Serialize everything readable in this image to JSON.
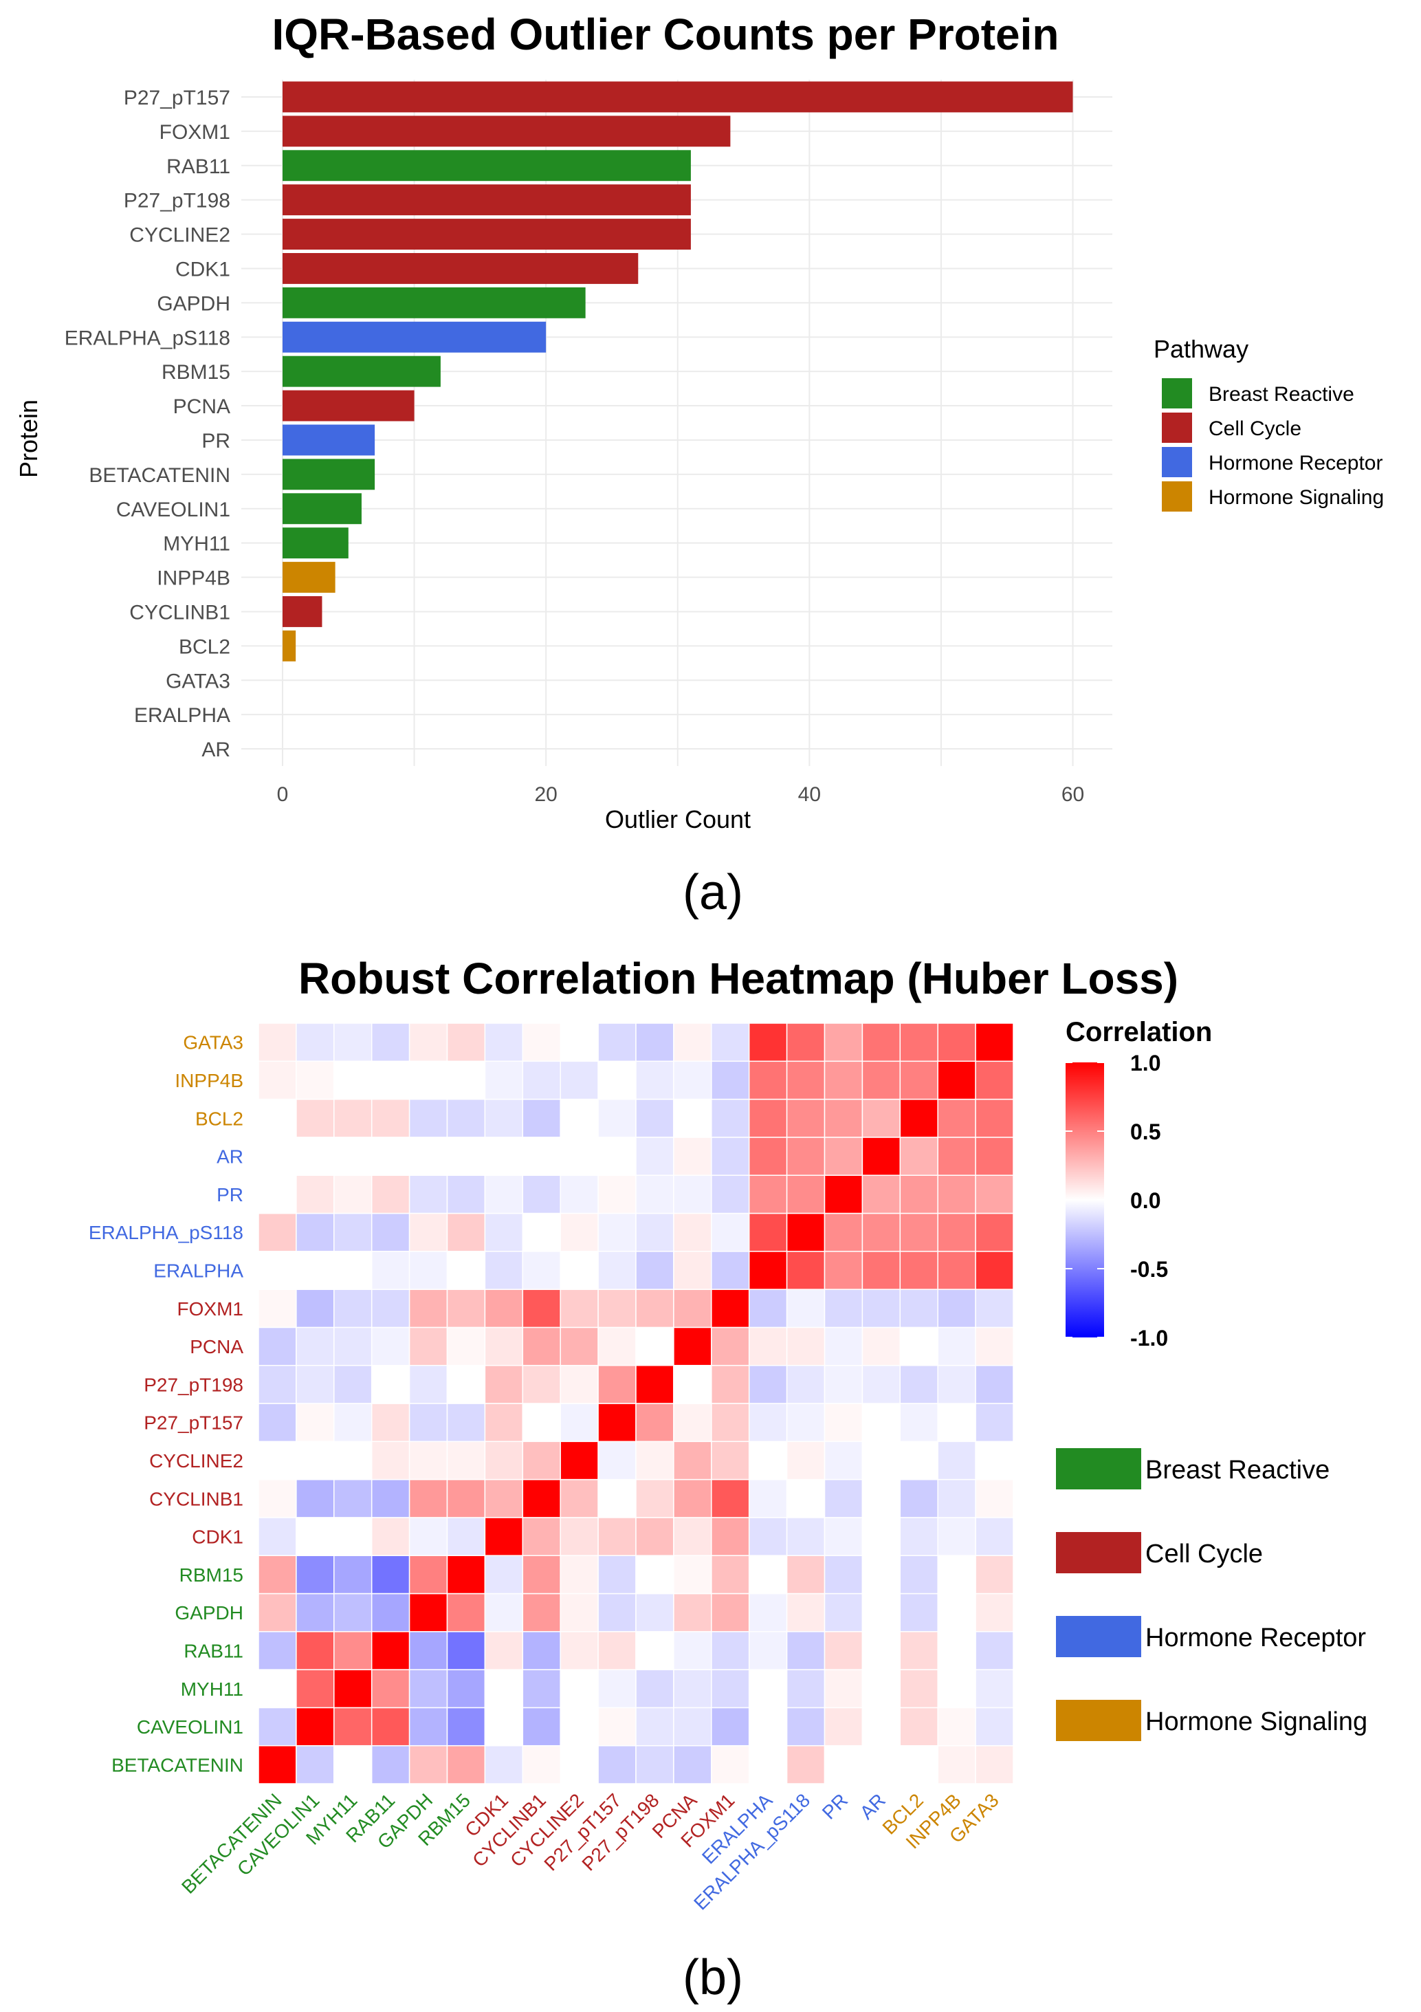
{
  "pathway_colors": {
    "Breast Reactive": "#228B22",
    "Cell Cycle": "#B22222",
    "Hormone Receptor": "#4169E1",
    "Hormone Signaling": "#CC8500"
  },
  "chart_data": [
    {
      "type": "bar",
      "orientation": "horizontal",
      "title": "IQR-Based Outlier Counts per Protein",
      "xlabel": "Outlier Count",
      "ylabel": "Protein",
      "xlim": [
        0,
        63
      ],
      "xticks": [
        0,
        20,
        40,
        60
      ],
      "grid": true,
      "legend": {
        "title": "Pathway",
        "position": "right",
        "entries": [
          "Breast Reactive",
          "Cell Cycle",
          "Hormone Receptor",
          "Hormone Signaling"
        ]
      },
      "categories": [
        "P27_pT157",
        "FOXM1",
        "RAB11",
        "P27_pT198",
        "CYCLINE2",
        "CDK1",
        "GAPDH",
        "ERALPHA_pS118",
        "RBM15",
        "PCNA",
        "PR",
        "BETACATENIN",
        "CAVEOLIN1",
        "MYH11",
        "INPP4B",
        "CYCLINB1",
        "BCL2",
        "GATA3",
        "ERALPHA",
        "AR"
      ],
      "values": [
        60,
        34,
        31,
        31,
        31,
        27,
        23,
        20,
        12,
        10,
        7,
        7,
        6,
        5,
        4,
        3,
        1,
        0,
        0,
        0
      ],
      "pathways": [
        "Cell Cycle",
        "Cell Cycle",
        "Breast Reactive",
        "Cell Cycle",
        "Cell Cycle",
        "Cell Cycle",
        "Breast Reactive",
        "Hormone Receptor",
        "Breast Reactive",
        "Cell Cycle",
        "Hormone Receptor",
        "Breast Reactive",
        "Breast Reactive",
        "Breast Reactive",
        "Hormone Signaling",
        "Cell Cycle",
        "Hormone Signaling",
        "Hormone Signaling",
        "Hormone Receptor",
        "Hormone Receptor"
      ],
      "caption": "(a)"
    },
    {
      "type": "heatmap",
      "title": "Robust Correlation Heatmap (Huber Loss)",
      "colorbar": {
        "title": "Correlation",
        "ticks": [
          "1.0",
          "0.5",
          "0.0",
          "-0.5",
          "-1.0"
        ],
        "range": [
          -1,
          1
        ],
        "low": "#0000FF",
        "mid": "#FFFFFF",
        "high": "#FF0000"
      },
      "legend": {
        "position": "right",
        "entries": [
          "Breast Reactive",
          "Cell Cycle",
          "Hormone Receptor",
          "Hormone Signaling"
        ]
      },
      "labels": [
        "BETACATENIN",
        "CAVEOLIN1",
        "MYH11",
        "RAB11",
        "GAPDH",
        "RBM15",
        "CDK1",
        "CYCLINB1",
        "CYCLINE2",
        "P27_pT157",
        "P27_pT198",
        "PCNA",
        "FOXM1",
        "ERALPHA",
        "ERALPHA_pS118",
        "PR",
        "AR",
        "BCL2",
        "INPP4B",
        "GATA3"
      ],
      "label_pathways": [
        "Breast Reactive",
        "Breast Reactive",
        "Breast Reactive",
        "Breast Reactive",
        "Breast Reactive",
        "Breast Reactive",
        "Cell Cycle",
        "Cell Cycle",
        "Cell Cycle",
        "Cell Cycle",
        "Cell Cycle",
        "Cell Cycle",
        "Cell Cycle",
        "Hormone Receptor",
        "Hormone Receptor",
        "Hormone Receptor",
        "Hormone Receptor",
        "Hormone Signaling",
        "Hormone Signaling",
        "Hormone Signaling"
      ],
      "matrix": [
        [
          1.0,
          -0.2,
          0.0,
          -0.25,
          0.25,
          0.35,
          -0.1,
          0.03,
          0.0,
          -0.2,
          -0.15,
          -0.2,
          0.03,
          0.0,
          0.2,
          0.0,
          0.0,
          0.0,
          0.05,
          0.08
        ],
        [
          -0.2,
          1.0,
          0.6,
          0.65,
          -0.3,
          -0.45,
          0.0,
          -0.3,
          0.0,
          0.03,
          -0.1,
          -0.1,
          -0.25,
          0.0,
          -0.2,
          0.1,
          0.0,
          0.15,
          0.03,
          -0.1
        ],
        [
          0.0,
          0.6,
          1.0,
          0.45,
          -0.25,
          -0.35,
          0.0,
          -0.25,
          0.0,
          -0.05,
          -0.15,
          -0.1,
          -0.15,
          0.0,
          -0.15,
          0.05,
          0.0,
          0.15,
          0.0,
          -0.08
        ],
        [
          -0.25,
          0.65,
          0.45,
          1.0,
          -0.35,
          -0.55,
          0.1,
          -0.3,
          0.08,
          0.12,
          0.0,
          -0.05,
          -0.15,
          -0.05,
          -0.2,
          0.15,
          0.0,
          0.15,
          0.0,
          -0.15
        ],
        [
          0.25,
          -0.3,
          -0.25,
          -0.35,
          1.0,
          0.5,
          -0.05,
          0.4,
          0.05,
          -0.15,
          -0.1,
          0.2,
          0.3,
          -0.05,
          0.08,
          -0.12,
          0.0,
          -0.15,
          0.0,
          0.08
        ],
        [
          0.35,
          -0.45,
          -0.35,
          -0.55,
          0.5,
          1.0,
          -0.1,
          0.4,
          0.05,
          -0.15,
          0.0,
          0.03,
          0.25,
          0.0,
          0.2,
          -0.15,
          0.0,
          -0.15,
          0.0,
          0.15
        ],
        [
          -0.1,
          0.0,
          0.0,
          0.1,
          -0.05,
          -0.1,
          1.0,
          0.3,
          0.12,
          0.2,
          0.25,
          0.1,
          0.35,
          -0.12,
          -0.1,
          -0.05,
          0.0,
          -0.1,
          -0.05,
          -0.1
        ],
        [
          0.03,
          -0.3,
          -0.25,
          -0.3,
          0.4,
          0.4,
          0.3,
          1.0,
          0.25,
          0.0,
          0.15,
          0.35,
          0.65,
          -0.05,
          0.0,
          -0.15,
          0.0,
          -0.2,
          -0.1,
          0.03
        ],
        [
          0.0,
          0.0,
          0.0,
          0.08,
          0.05,
          0.05,
          0.12,
          0.25,
          1.0,
          -0.05,
          0.05,
          0.3,
          0.2,
          0.0,
          0.05,
          -0.05,
          0.0,
          0.0,
          -0.1,
          0.0
        ],
        [
          -0.2,
          0.03,
          -0.05,
          0.12,
          -0.15,
          -0.15,
          0.2,
          0.0,
          -0.05,
          1.0,
          0.4,
          0.05,
          0.2,
          -0.08,
          -0.05,
          0.03,
          0.0,
          -0.05,
          0.0,
          -0.15
        ],
        [
          -0.15,
          -0.1,
          -0.15,
          0.0,
          -0.1,
          0.0,
          0.25,
          0.15,
          0.05,
          0.4,
          1.0,
          0.0,
          0.25,
          -0.2,
          -0.1,
          -0.05,
          -0.08,
          -0.15,
          -0.08,
          -0.2
        ],
        [
          -0.2,
          -0.1,
          -0.1,
          -0.05,
          0.2,
          0.03,
          0.1,
          0.35,
          0.3,
          0.05,
          0.0,
          1.0,
          0.3,
          0.08,
          0.08,
          -0.05,
          0.05,
          0.0,
          -0.05,
          0.05
        ],
        [
          0.03,
          -0.25,
          -0.15,
          -0.15,
          0.3,
          0.25,
          0.35,
          0.65,
          0.2,
          0.2,
          0.25,
          0.3,
          1.0,
          -0.2,
          -0.05,
          -0.15,
          -0.15,
          -0.15,
          -0.2,
          -0.12
        ],
        [
          0.0,
          0.0,
          0.0,
          -0.05,
          -0.05,
          0.0,
          -0.12,
          -0.05,
          0.0,
          -0.08,
          -0.2,
          0.08,
          -0.2,
          1.0,
          0.7,
          0.45,
          0.55,
          0.55,
          0.55,
          0.8
        ],
        [
          0.2,
          -0.2,
          -0.15,
          -0.2,
          0.08,
          0.2,
          -0.1,
          0.0,
          0.05,
          -0.05,
          -0.1,
          0.08,
          -0.05,
          0.7,
          1.0,
          0.45,
          0.45,
          0.45,
          0.5,
          0.6
        ],
        [
          0.0,
          0.1,
          0.05,
          0.15,
          -0.12,
          -0.15,
          -0.05,
          -0.15,
          -0.05,
          0.03,
          -0.05,
          -0.05,
          -0.15,
          0.45,
          0.45,
          1.0,
          0.35,
          0.4,
          0.4,
          0.35
        ],
        [
          0.0,
          0.0,
          0.0,
          0.0,
          0.0,
          0.0,
          0.0,
          0.0,
          0.0,
          0.0,
          -0.08,
          0.05,
          -0.15,
          0.55,
          0.45,
          0.35,
          1.0,
          0.3,
          0.5,
          0.55
        ],
        [
          0.0,
          0.15,
          0.15,
          0.15,
          -0.15,
          -0.15,
          -0.1,
          -0.2,
          0.0,
          -0.05,
          -0.15,
          0.0,
          -0.15,
          0.55,
          0.45,
          0.4,
          0.3,
          1.0,
          0.5,
          0.55
        ],
        [
          0.05,
          0.03,
          0.0,
          0.0,
          0.0,
          0.0,
          -0.05,
          -0.1,
          -0.1,
          0.0,
          -0.08,
          -0.05,
          -0.2,
          0.55,
          0.5,
          0.4,
          0.5,
          0.5,
          1.0,
          0.6
        ],
        [
          0.08,
          -0.1,
          -0.08,
          -0.15,
          0.08,
          0.15,
          -0.1,
          0.03,
          0.0,
          -0.15,
          -0.2,
          0.05,
          -0.12,
          0.8,
          0.6,
          0.35,
          0.55,
          0.55,
          0.6,
          1.0
        ]
      ],
      "caption": "(b)"
    }
  ]
}
